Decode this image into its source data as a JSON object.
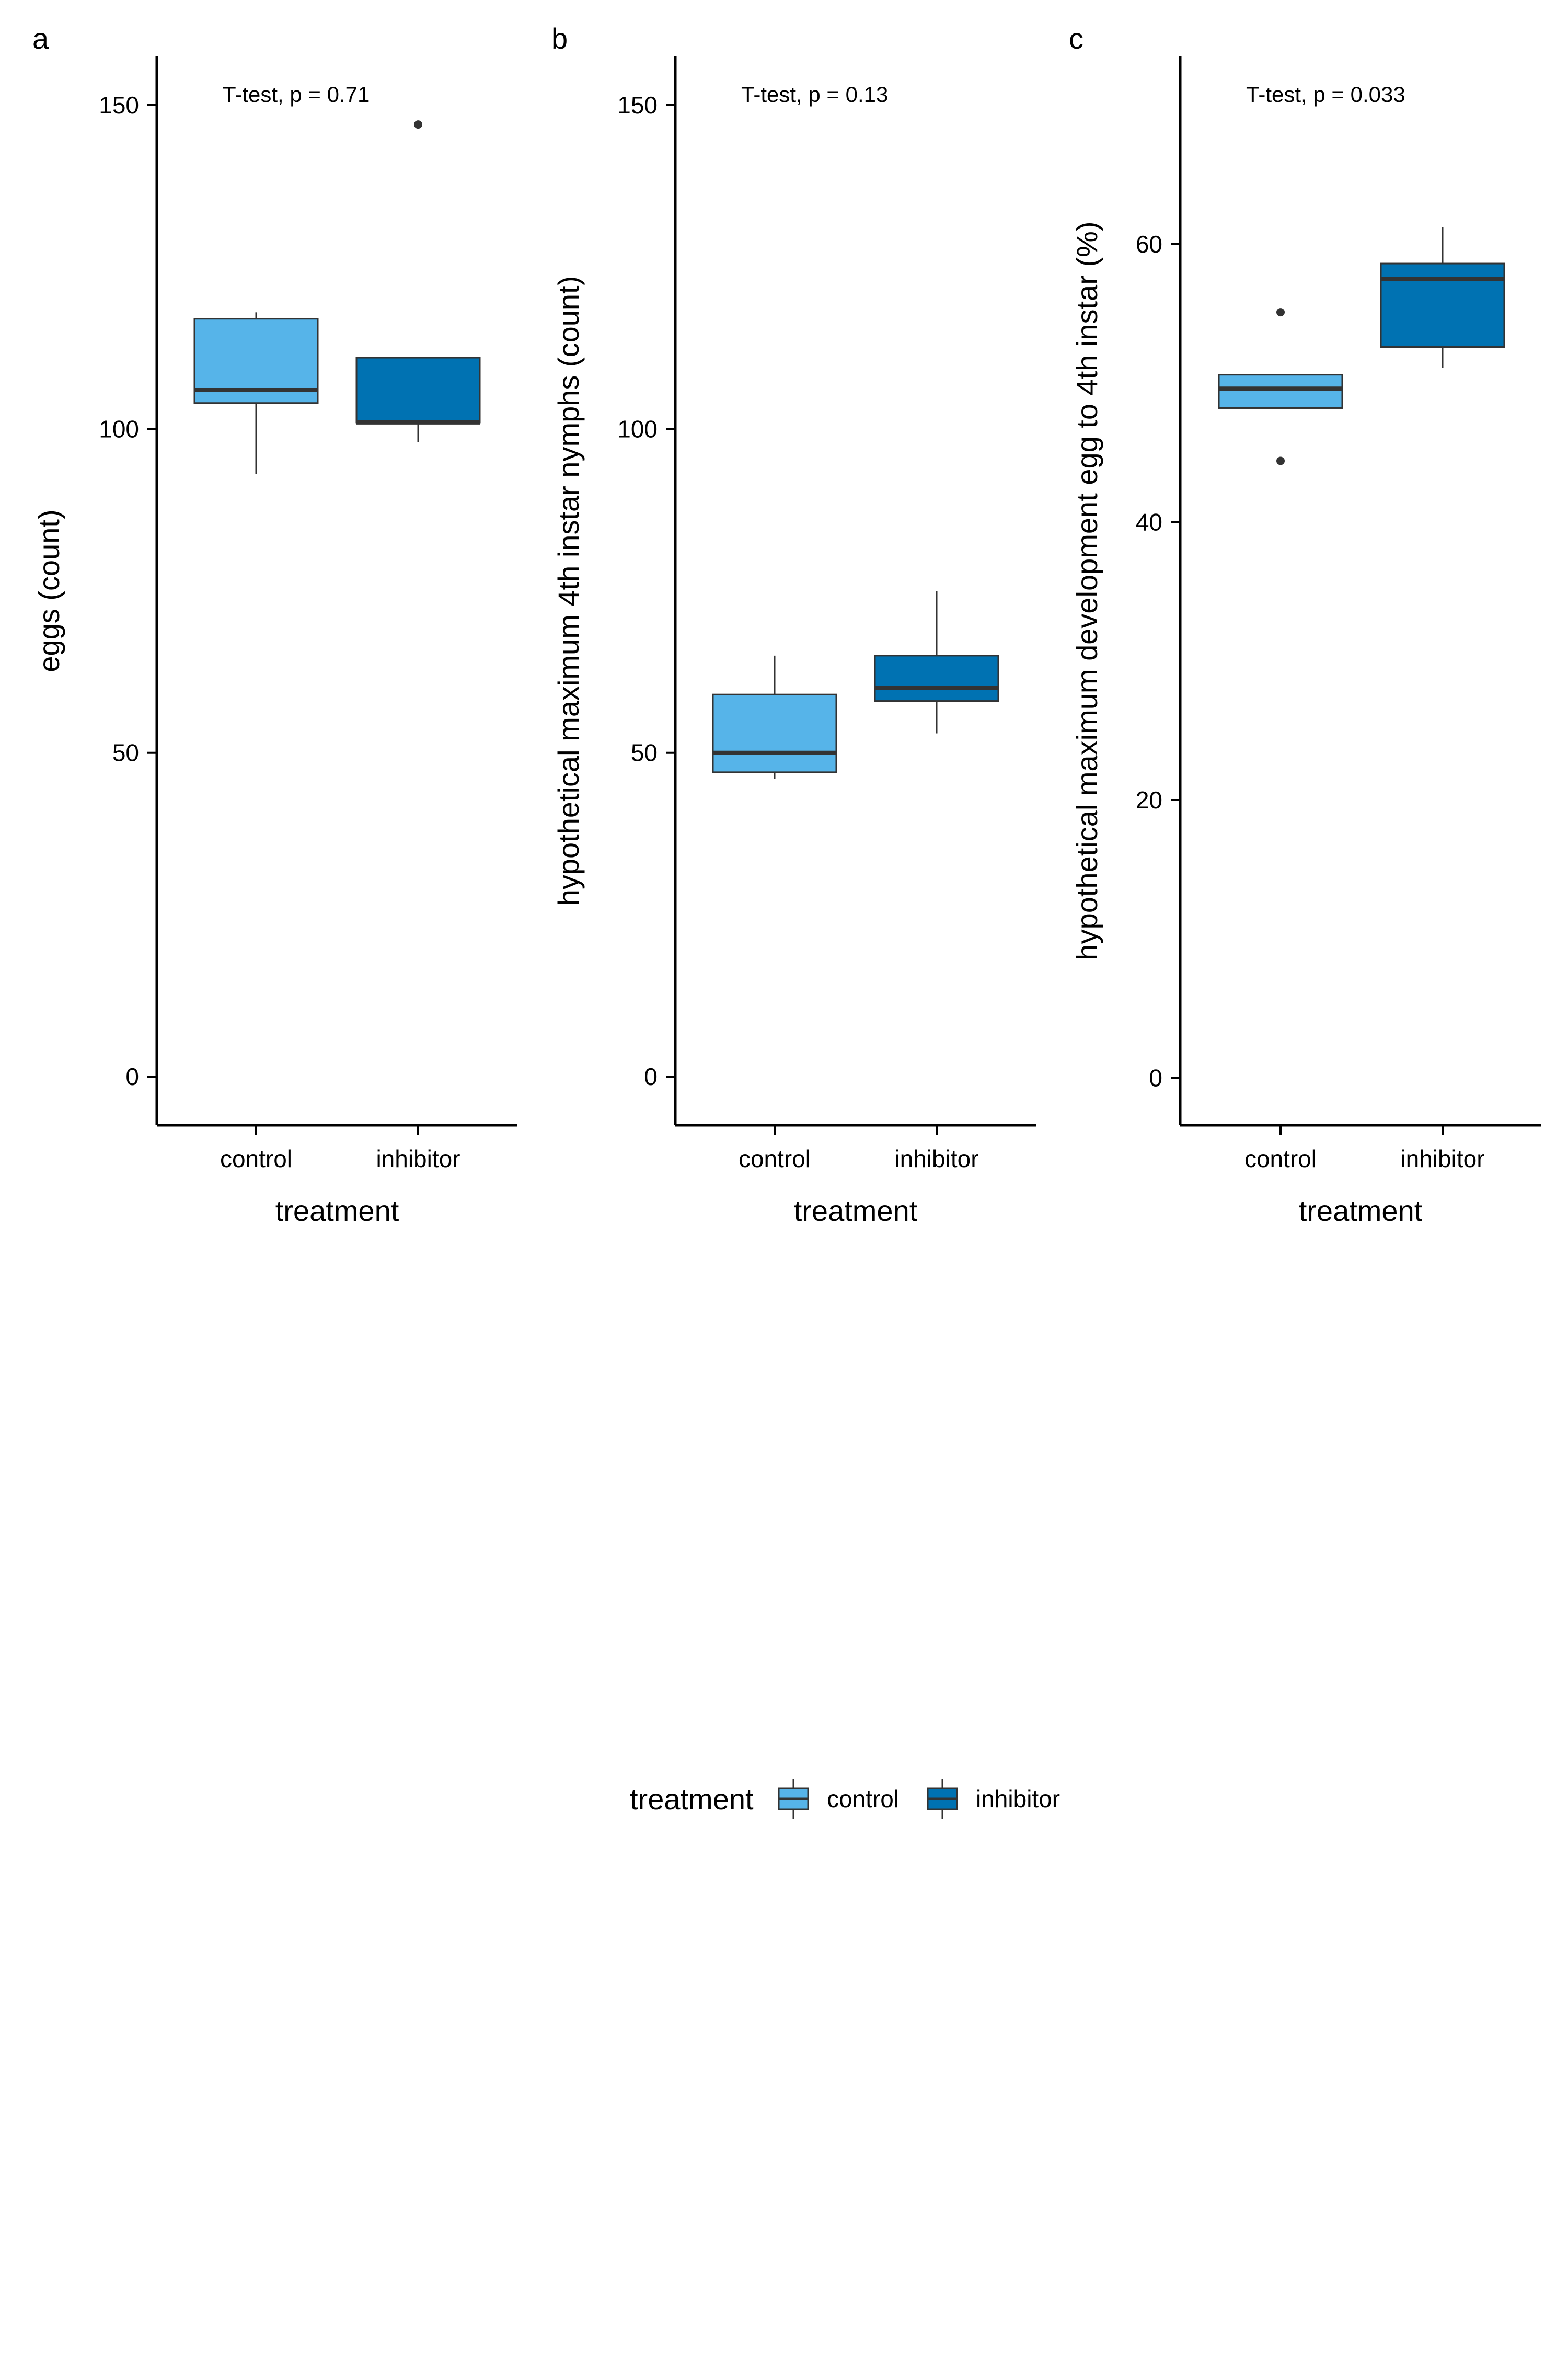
{
  "chart_data": [
    {
      "type": "box",
      "panel_label": "a",
      "annotation": "T-test, p = 0.71",
      "xlabel": "treatment",
      "ylabel": "eggs (count)",
      "ylim": [
        -7.5,
        157.5
      ],
      "yticks": [
        0,
        50,
        100,
        150
      ],
      "categories": [
        "control",
        "inhibitor"
      ],
      "boxes": [
        {
          "category": "control",
          "min": 93,
          "q1": 104,
          "median": 106,
          "q3": 117,
          "max": 118,
          "outliers": []
        },
        {
          "category": "inhibitor",
          "min": 98,
          "q1": 101,
          "median": 101,
          "q3": 111,
          "max": 111,
          "outliers": [
            147
          ]
        }
      ],
      "grid": false
    },
    {
      "type": "box",
      "panel_label": "b",
      "annotation": "T-test, p = 0.13",
      "xlabel": "treatment",
      "ylabel": "hypothetical maximum 4th instar nymphs (count)",
      "ylim": [
        -7.5,
        157.5
      ],
      "yticks": [
        0,
        50,
        100,
        150
      ],
      "categories": [
        "control",
        "inhibitor"
      ],
      "boxes": [
        {
          "category": "control",
          "min": 46,
          "q1": 47,
          "median": 50,
          "q3": 59,
          "max": 65,
          "outliers": []
        },
        {
          "category": "inhibitor",
          "min": 53,
          "q1": 58,
          "median": 60,
          "q3": 65,
          "max": 75,
          "outliers": []
        }
      ],
      "grid": false
    },
    {
      "type": "box",
      "panel_label": "c",
      "annotation": "T-test, p = 0.033",
      "xlabel": "treatment",
      "ylabel": "hypothetical maximum development egg to 4th instar (%)",
      "ylim": [
        -3.4,
        73.5
      ],
      "yticks": [
        0,
        20,
        40,
        60
      ],
      "categories": [
        "control",
        "inhibitor"
      ],
      "boxes": [
        {
          "category": "control",
          "min": 48.2,
          "q1": 48.2,
          "median": 49.6,
          "q3": 50.6,
          "max": 50.6,
          "outliers": [
            55.1,
            44.4
          ]
        },
        {
          "category": "inhibitor",
          "min": 51.1,
          "q1": 52.6,
          "median": 57.5,
          "q3": 58.6,
          "max": 61.2,
          "outliers": []
        }
      ],
      "grid": false
    }
  ],
  "legend": {
    "title": "treatment",
    "placement": "bottom",
    "items": [
      {
        "label": "control",
        "color": "#56B4E9"
      },
      {
        "label": "inhibitor",
        "color": "#0072B2"
      }
    ]
  },
  "colors": {
    "control": "#56B4E9",
    "inhibitor": "#0072B2",
    "outline": "#333333",
    "axis": "#000000"
  }
}
